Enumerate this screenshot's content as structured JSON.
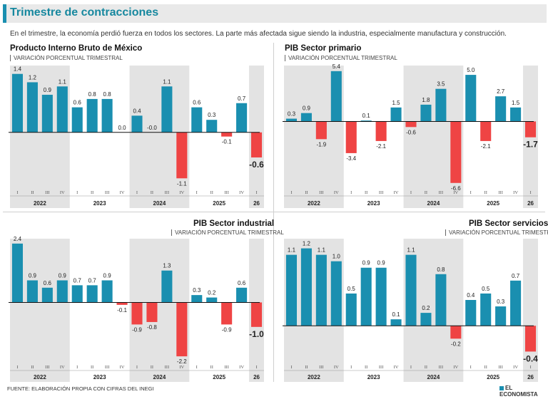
{
  "header": {
    "title": "Trimestre de contracciones",
    "subtitle": "En el trimestre, la economía perdió fuerza en todos los sectores. La parte más afectada sigue siendo la industria, especialmente manufactura y construcción."
  },
  "footer": {
    "source": "FUENTE: ELABORACIÓN PROPIA CON CIFRAS DEL INEGI",
    "brand": "EL ECONOMISTA"
  },
  "colors": {
    "positive": "#1a8fb0",
    "negative": "#ef4444",
    "shade": "#e3e3e3",
    "accent": "#1a8fb0"
  },
  "quarters": [
    "I",
    "II",
    "III",
    "IV",
    "I",
    "II",
    "III",
    "IV",
    "I",
    "II",
    "III",
    "IV",
    "I",
    "II",
    "III",
    "IV",
    "I"
  ],
  "years": [
    {
      "label": "2022",
      "start": 0,
      "end": 3,
      "shaded": true
    },
    {
      "label": "2023",
      "start": 4,
      "end": 7,
      "shaded": false
    },
    {
      "label": "2024",
      "start": 8,
      "end": 11,
      "shaded": true
    },
    {
      "label": "2025",
      "start": 12,
      "end": 15,
      "shaded": false
    },
    {
      "label": "26",
      "start": 16,
      "end": 16,
      "shaded": true
    }
  ],
  "chart_data": [
    {
      "type": "bar",
      "title": "Producto Interno Bruto de México",
      "subtitle": "VARIACIÓN PORCENTUAL TRIMESTRAL",
      "values": [
        1.4,
        1.2,
        0.9,
        1.1,
        0.6,
        0.8,
        0.8,
        0.0,
        0.4,
        -0.0,
        1.1,
        -1.1,
        0.6,
        0.3,
        -0.1,
        0.7,
        -0.6
      ],
      "labels": [
        "1.4",
        "1.2",
        "0.9",
        "1.1",
        "0.6",
        "0.8",
        "0.8",
        "0.0",
        "0.4",
        "-0.0",
        "1.1",
        "-1.1",
        "0.6",
        "0.3",
        "-0.1",
        "0.7",
        "-0.6"
      ],
      "ylim": [
        -1.3,
        1.6
      ]
    },
    {
      "type": "bar",
      "title": "PIB Sector primario",
      "subtitle": "VARIACIÓN PORCENTUAL TRIMESTRAL",
      "values": [
        0.3,
        0.9,
        -1.9,
        5.4,
        -3.4,
        0.1,
        -2.1,
        1.5,
        -0.6,
        1.8,
        3.5,
        -6.6,
        5.0,
        -2.1,
        2.7,
        1.5,
        -1.7
      ],
      "labels": [
        "0.3",
        "0.9",
        "-1.9",
        "5.4",
        "-3.4",
        "0.1",
        "-2.1",
        "1.5",
        "-0.6",
        "1.8",
        "3.5",
        "-6.6",
        "5.0",
        "-2.1",
        "2.7",
        "1.5",
        "-1.7"
      ],
      "ylim": [
        -7.0,
        6.0
      ]
    },
    {
      "type": "bar",
      "title": "PIB Sector industrial",
      "subtitle": "VARIACIÓN PORCENTUAL TRIMESTRAL",
      "values": [
        2.4,
        0.9,
        0.6,
        0.9,
        0.7,
        0.7,
        0.9,
        -0.1,
        -0.9,
        -0.8,
        1.3,
        -2.2,
        0.3,
        0.2,
        -0.9,
        0.6,
        -1.0
      ],
      "labels": [
        "2.4",
        "0.9",
        "0.6",
        "0.9",
        "0.7",
        "0.7",
        "0.9",
        "-0.1",
        "-0.9",
        "-0.8",
        "1.3",
        "-2.2",
        "0.3",
        "0.2",
        "-0.9",
        "0.6",
        "-1.0"
      ],
      "ylim": [
        -2.4,
        2.6
      ]
    },
    {
      "type": "bar",
      "title": "PIB Sector servicios",
      "subtitle": "VARIACIÓN PORCENTUAL TRIMESTRAL",
      "values": [
        1.1,
        1.2,
        1.1,
        1.0,
        0.5,
        0.9,
        0.9,
        0.1,
        1.1,
        0.2,
        0.8,
        -0.2,
        0.4,
        0.5,
        0.3,
        0.7,
        -0.4
      ],
      "labels": [
        "1.1",
        "1.2",
        "1.1",
        "1.0",
        "0.5",
        "0.9",
        "0.9",
        "0.1",
        "1.1",
        "0.2",
        "0.8",
        "-0.2",
        "0.4",
        "0.5",
        "0.3",
        "0.7",
        "-0.4"
      ],
      "ylim": [
        -0.55,
        1.35
      ]
    }
  ]
}
